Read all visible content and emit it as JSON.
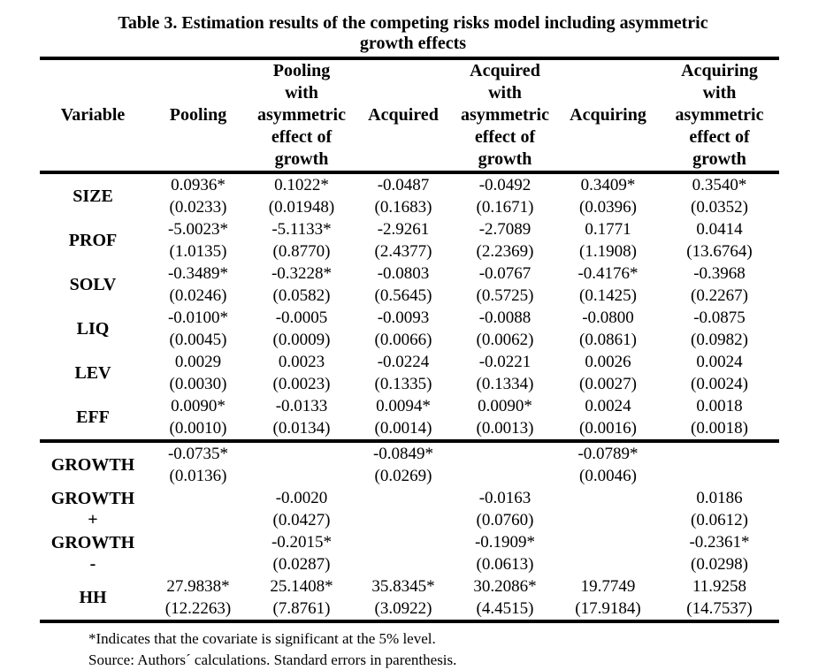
{
  "title": "Table 3. Estimation results of the competing risks model including asymmetric\ngrowth effects",
  "table": {
    "headers": [
      {
        "id": "variable",
        "label": "Variable"
      },
      {
        "id": "pooling",
        "label": "Pooling"
      },
      {
        "id": "pooling-asymmetric",
        "label": "Pooling\nwith\nasymmetric\neffect of\ngrowth"
      },
      {
        "id": "acquired",
        "label": "Acquired"
      },
      {
        "id": "acquired-asymmetric",
        "label": "Acquired\nwith\nasymmetric\neffect of\ngrowth"
      },
      {
        "id": "acquiring",
        "label": "Acquiring"
      },
      {
        "id": "acquiring-asymmetric",
        "label": "Acquiring\nwith\nasymmetric\neffect of\ngrowth"
      }
    ],
    "sections": [
      {
        "name": "covariates",
        "rows": [
          {
            "variable": "SIZE",
            "cells": [
              {
                "coef": "0.0936*",
                "se": "(0.0233)"
              },
              {
                "coef": "0.1022*",
                "se": "(0.01948)"
              },
              {
                "coef": "-0.0487",
                "se": "(0.1683)"
              },
              {
                "coef": "-0.0492",
                "se": "(0.1671)"
              },
              {
                "coef": "0.3409*",
                "se": "(0.0396)"
              },
              {
                "coef": "0.3540*",
                "se": "(0.0352)"
              }
            ]
          },
          {
            "variable": "PROF",
            "cells": [
              {
                "coef": "-5.0023*",
                "se": "(1.0135)"
              },
              {
                "coef": "-5.1133*",
                "se": "(0.8770)"
              },
              {
                "coef": "-2.9261",
                "se": "(2.4377)"
              },
              {
                "coef": "-2.7089",
                "se": "(2.2369)"
              },
              {
                "coef": "0.1771",
                "se": "(1.1908)"
              },
              {
                "coef": "0.0414",
                "se": "(13.6764)"
              }
            ]
          },
          {
            "variable": "SOLV",
            "cells": [
              {
                "coef": "-0.3489*",
                "se": "(0.0246)"
              },
              {
                "coef": "-0.3228*",
                "se": "(0.0582)"
              },
              {
                "coef": "-0.0803",
                "se": "(0.5645)"
              },
              {
                "coef": "-0.0767",
                "se": "(0.5725)"
              },
              {
                "coef": "-0.4176*",
                "se": "(0.1425)"
              },
              {
                "coef": "-0.3968",
                "se": "(0.2267)"
              }
            ]
          },
          {
            "variable": "LIQ",
            "cells": [
              {
                "coef": "-0.0100*",
                "se": "(0.0045)"
              },
              {
                "coef": "-0.0005",
                "se": "(0.0009)"
              },
              {
                "coef": "-0.0093",
                "se": "(0.0066)"
              },
              {
                "coef": "-0.0088",
                "se": "(0.0062)"
              },
              {
                "coef": "-0.0800",
                "se": "(0.0861)"
              },
              {
                "coef": "-0.0875",
                "se": "(0.0982)"
              }
            ]
          },
          {
            "variable": "LEV",
            "cells": [
              {
                "coef": "0.0029",
                "se": "(0.0030)"
              },
              {
                "coef": "0.0023",
                "se": "(0.0023)"
              },
              {
                "coef": "-0.0224",
                "se": "(0.1335)"
              },
              {
                "coef": "-0.0221",
                "se": "(0.1334)"
              },
              {
                "coef": "0.0026",
                "se": "(0.0027)"
              },
              {
                "coef": "0.0024",
                "se": "(0.0024)"
              }
            ]
          },
          {
            "variable": "EFF",
            "cells": [
              {
                "coef": "0.0090*",
                "se": "(0.0010)"
              },
              {
                "coef": "-0.0133",
                "se": "(0.0134)"
              },
              {
                "coef": "0.0094*",
                "se": "(0.0014)"
              },
              {
                "coef": "0.0090*",
                "se": "(0.0013)"
              },
              {
                "coef": "0.0024",
                "se": "(0.0016)"
              },
              {
                "coef": "0.0018",
                "se": "(0.0018)"
              }
            ]
          }
        ]
      },
      {
        "name": "growth",
        "rows": [
          {
            "variable": "GROWTH",
            "cells": [
              {
                "coef": "-0.0735*",
                "se": "(0.0136)"
              },
              null,
              {
                "coef": "-0.0849*",
                "se": "(0.0269)"
              },
              null,
              {
                "coef": "-0.0789*",
                "se": "(0.0046)"
              },
              null
            ]
          },
          {
            "variable": "GROWTH\n+",
            "cells": [
              null,
              {
                "coef": "-0.0020",
                "se": "(0.0427)"
              },
              null,
              {
                "coef": "-0.0163",
                "se": "(0.0760)"
              },
              null,
              {
                "coef": "0.0186",
                "se": "(0.0612)"
              }
            ]
          },
          {
            "variable": "GROWTH\n-",
            "cells": [
              null,
              {
                "coef": "-0.2015*",
                "se": "(0.0287)"
              },
              null,
              {
                "coef": "-0.1909*",
                "se": "(0.0613)"
              },
              null,
              {
                "coef": "-0.2361*",
                "se": "(0.0298)"
              }
            ]
          },
          {
            "variable": "HH",
            "cells": [
              {
                "coef": "27.9838*",
                "se": "(12.2263)"
              },
              {
                "coef": "25.1408*",
                "se": "(7.8761)"
              },
              {
                "coef": "35.8345*",
                "se": "(3.0922)"
              },
              {
                "coef": "30.2086*",
                "se": "(4.4515)"
              },
              {
                "coef": "19.7749",
                "se": "(17.9184)"
              },
              {
                "coef": "11.9258",
                "se": "(14.7537)"
              }
            ]
          }
        ]
      }
    ]
  },
  "footnotes": [
    "*Indicates that the covariate is significant at the 5% level.",
    "Source: Authors´ calculations. Standard errors in parenthesis."
  ]
}
